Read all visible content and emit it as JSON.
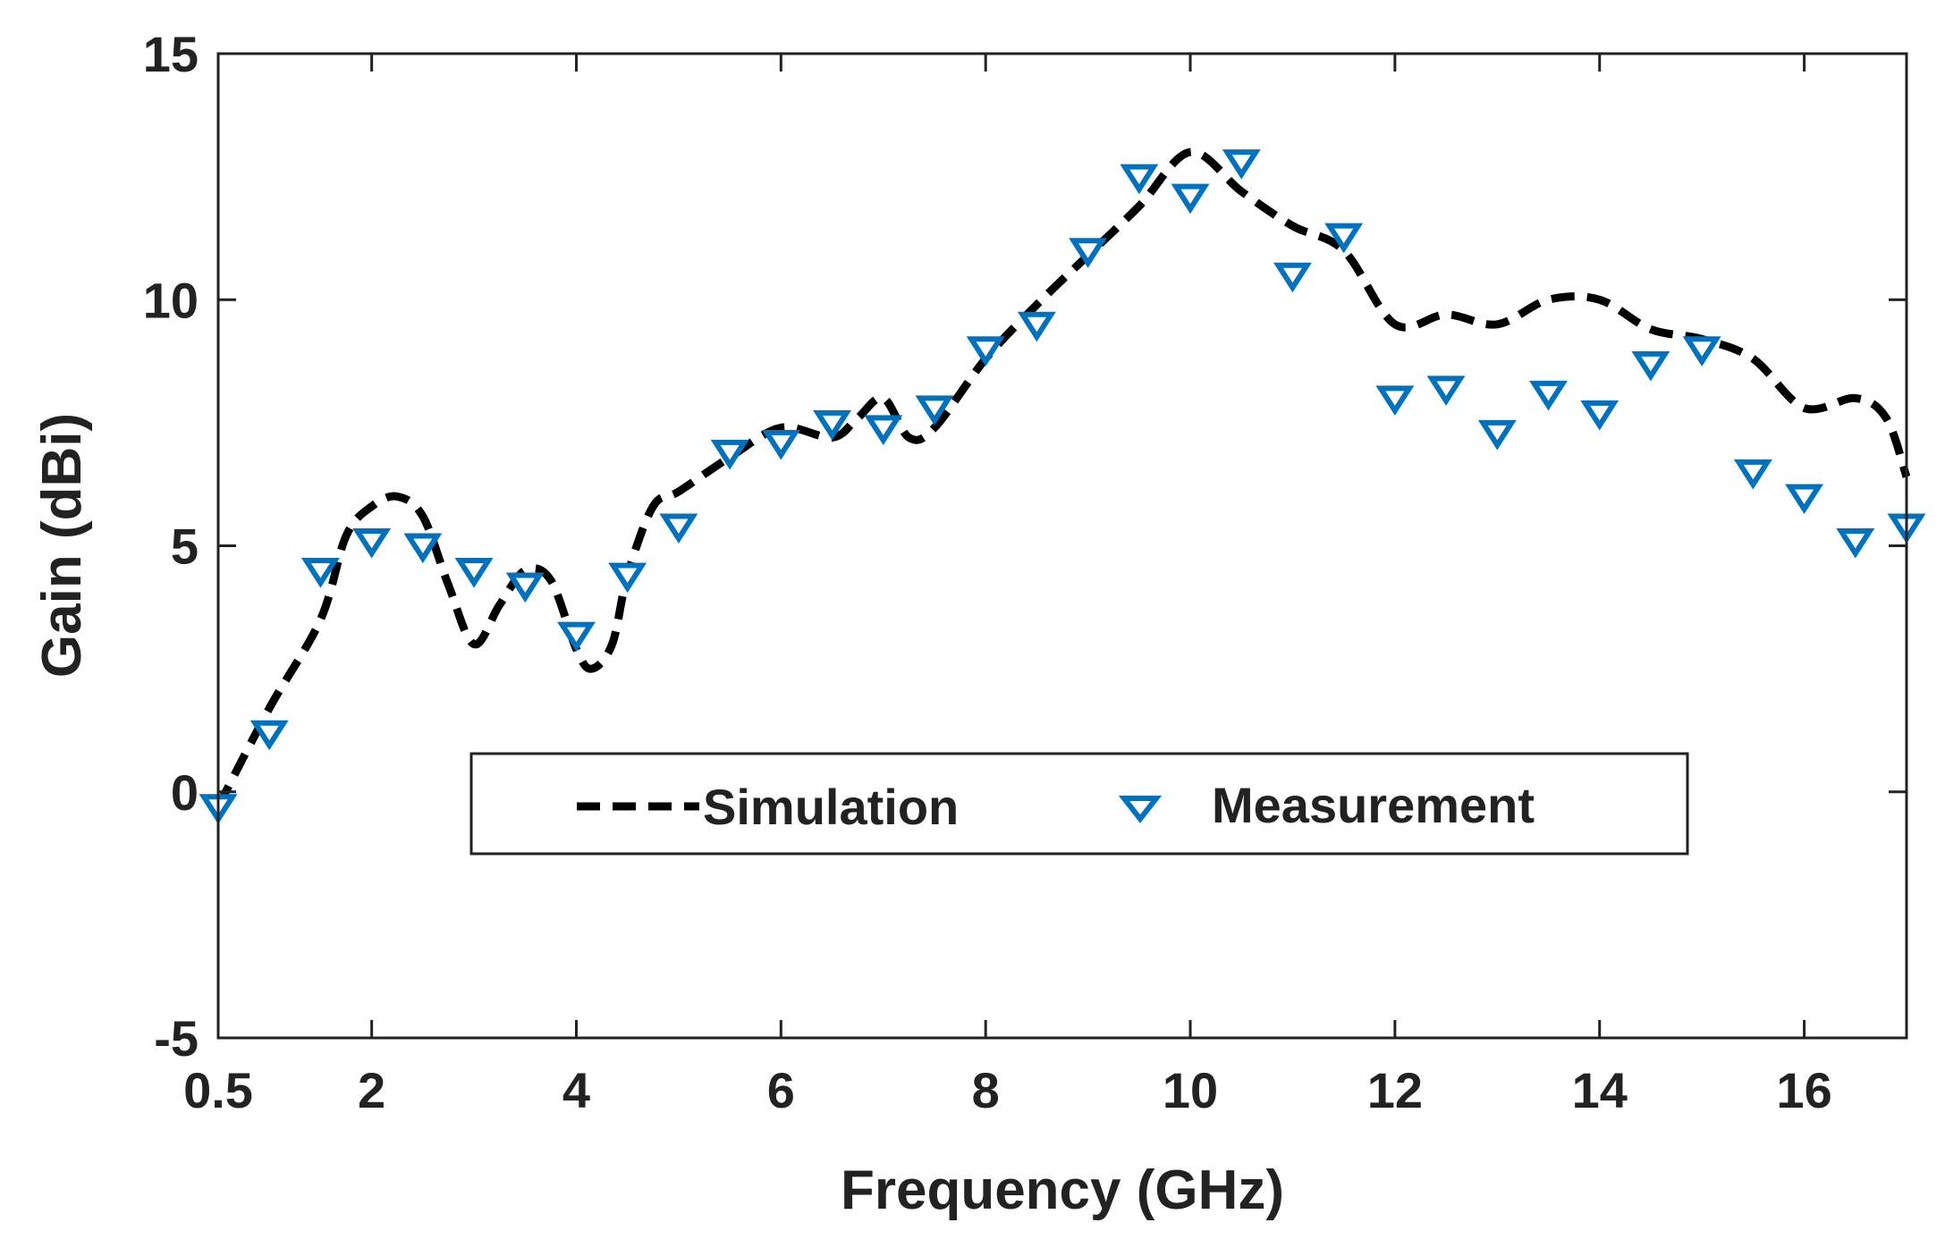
{
  "chart_data": {
    "type": "line",
    "title": "",
    "xlabel": "Frequency (GHz)",
    "ylabel": "Gain (dBi)",
    "xlim": [
      0.5,
      17
    ],
    "ylim": [
      -5,
      15
    ],
    "xticks": [
      0.5,
      2,
      4,
      6,
      8,
      10,
      12,
      14,
      16
    ],
    "xtick_labels": [
      "0.5",
      "2",
      "4",
      "6",
      "8",
      "10",
      "12",
      "14",
      "16"
    ],
    "yticks": [
      -5,
      0,
      5,
      10,
      15
    ],
    "ytick_labels": [
      "-5",
      "0",
      "5",
      "10",
      "15"
    ],
    "grid": false,
    "legend_position": "center",
    "series": [
      {
        "name": "Simulation",
        "style": "dashed-line",
        "color": "#000000",
        "x": [
          0.5,
          1.0,
          1.5,
          1.75,
          2.0,
          2.25,
          2.5,
          2.75,
          3.0,
          3.25,
          3.5,
          3.75,
          4.0,
          4.15,
          4.35,
          4.5,
          4.75,
          5.0,
          5.5,
          6.0,
          6.5,
          6.75,
          7.0,
          7.25,
          7.5,
          8.0,
          8.5,
          9.0,
          9.5,
          10.0,
          10.5,
          11.0,
          11.5,
          12.0,
          12.5,
          13.0,
          13.5,
          14.0,
          14.5,
          15.0,
          15.5,
          16.0,
          16.5,
          16.8,
          17.0
        ],
        "y": [
          -0.3,
          1.7,
          3.5,
          5.2,
          5.8,
          6.0,
          5.6,
          4.2,
          3.0,
          3.8,
          4.5,
          4.3,
          2.9,
          2.5,
          3.0,
          4.4,
          5.8,
          6.1,
          6.8,
          7.4,
          7.2,
          7.6,
          8.0,
          7.2,
          7.4,
          8.8,
          9.9,
          10.9,
          11.9,
          13.0,
          12.2,
          11.5,
          11.0,
          9.5,
          9.7,
          9.5,
          10.0,
          10.0,
          9.4,
          9.2,
          8.8,
          7.8,
          8.0,
          7.6,
          6.4
        ]
      },
      {
        "name": "Measurement",
        "style": "triangle-down-markers",
        "color": "#0072BD",
        "x": [
          0.5,
          1.0,
          1.5,
          2.0,
          2.5,
          3.0,
          3.5,
          4.0,
          4.5,
          5.0,
          5.5,
          6.0,
          6.5,
          7.0,
          7.5,
          8.0,
          8.5,
          9.0,
          9.5,
          10.0,
          10.5,
          11.0,
          11.5,
          12.0,
          12.5,
          13.0,
          13.5,
          14.0,
          14.5,
          15.0,
          15.5,
          16.0,
          16.5,
          17.0
        ],
        "y": [
          -0.3,
          1.2,
          4.5,
          5.1,
          5.0,
          4.5,
          4.2,
          3.2,
          4.4,
          5.4,
          6.9,
          7.1,
          7.5,
          7.4,
          7.8,
          9.0,
          9.5,
          11.0,
          12.5,
          12.1,
          12.8,
          10.5,
          11.3,
          8.0,
          8.2,
          7.3,
          8.1,
          7.7,
          8.7,
          9.0,
          6.5,
          6.0,
          5.1,
          5.4
        ]
      }
    ]
  }
}
